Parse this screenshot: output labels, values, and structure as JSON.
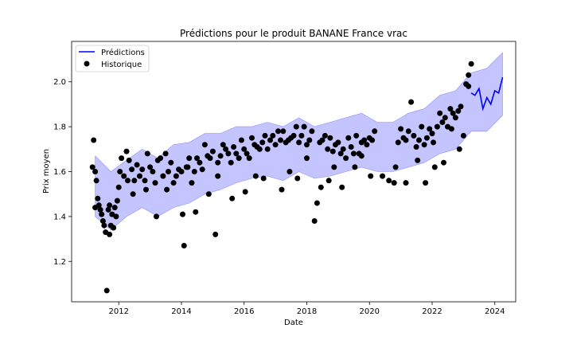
{
  "chart_data": {
    "type": "line",
    "title": "Prédictions pour le produit BANANE France vrac",
    "xlabel": "Date",
    "ylabel": "Prix moyen",
    "xlim": [
      "2010-07-01",
      "2024-09-01"
    ],
    "ylim": [
      1.02,
      2.18
    ],
    "x_ticks": [
      "2012",
      "2014",
      "2016",
      "2018",
      "2020",
      "2022",
      "2024"
    ],
    "y_ticks": [
      "1.2",
      "1.4",
      "1.6",
      "1.8",
      "2.0"
    ],
    "grid": false,
    "legend": {
      "placement": "top-left",
      "entries": [
        "Prédictions",
        "Historique"
      ]
    },
    "colors": {
      "prediction_line": "#0000ff",
      "interval_band": "#b0b0ff",
      "history_points": "#000000"
    },
    "series": [
      {
        "name": "Prédictions",
        "kind": "line",
        "x": [
          "2023-04-01",
          "2023-05-15",
          "2023-07-01",
          "2023-08-15",
          "2023-10-01",
          "2023-11-15",
          "2024-01-01",
          "2024-02-15",
          "2024-04-01"
        ],
        "y": [
          1.95,
          1.94,
          1.97,
          1.88,
          1.93,
          1.9,
          1.96,
          1.95,
          2.02
        ]
      },
      {
        "name": "Intervalle",
        "kind": "band",
        "x": [
          "2011-04-01",
          "2011-10-01",
          "2012-04-01",
          "2012-10-01",
          "2013-04-01",
          "2013-10-01",
          "2014-04-01",
          "2014-10-01",
          "2015-04-01",
          "2015-10-01",
          "2016-04-01",
          "2016-10-01",
          "2017-04-01",
          "2017-10-01",
          "2018-04-01",
          "2018-10-01",
          "2019-04-01",
          "2019-10-01",
          "2020-04-01",
          "2020-10-01",
          "2021-04-01",
          "2021-10-01",
          "2022-04-01",
          "2022-10-01",
          "2023-04-01",
          "2023-10-01",
          "2024-04-01"
        ],
        "lower": [
          1.4,
          1.34,
          1.4,
          1.44,
          1.4,
          1.44,
          1.46,
          1.5,
          1.52,
          1.55,
          1.57,
          1.58,
          1.56,
          1.6,
          1.57,
          1.58,
          1.6,
          1.62,
          1.6,
          1.6,
          1.62,
          1.64,
          1.68,
          1.7,
          1.78,
          1.78,
          1.85
        ],
        "upper": [
          1.67,
          1.6,
          1.65,
          1.7,
          1.66,
          1.72,
          1.73,
          1.77,
          1.77,
          1.8,
          1.8,
          1.82,
          1.8,
          1.84,
          1.8,
          1.82,
          1.84,
          1.86,
          1.82,
          1.82,
          1.86,
          1.88,
          1.94,
          1.96,
          2.04,
          2.06,
          2.13
        ]
      },
      {
        "name": "Historique",
        "kind": "scatter",
        "x": [
          "2011-03-01",
          "2011-03-15",
          "2011-04-01",
          "2011-04-15",
          "2011-05-01",
          "2011-05-15",
          "2011-06-01",
          "2011-06-15",
          "2011-07-01",
          "2011-07-15",
          "2011-08-01",
          "2011-08-15",
          "2011-09-01",
          "2011-09-15",
          "2011-10-01",
          "2011-10-15",
          "2011-11-01",
          "2011-11-15",
          "2011-12-01",
          "2011-12-15",
          "2012-01-01",
          "2012-01-15",
          "2012-02-01",
          "2012-03-01",
          "2012-04-01",
          "2012-05-01",
          "2012-06-01",
          "2012-07-01",
          "2012-08-01",
          "2012-09-01",
          "2012-10-01",
          "2012-11-01",
          "2012-12-01",
          "2013-01-01",
          "2013-02-01",
          "2013-03-01",
          "2013-04-01",
          "2013-05-01",
          "2013-06-01",
          "2013-07-01",
          "2013-08-01",
          "2013-09-01",
          "2013-10-01",
          "2013-11-01",
          "2013-12-01",
          "2014-01-01",
          "2014-02-01",
          "2014-03-01",
          "2014-04-01",
          "2014-05-01",
          "2014-06-01",
          "2014-07-01",
          "2014-08-01",
          "2014-09-01",
          "2014-10-01",
          "2014-11-01",
          "2014-12-01",
          "2015-01-01",
          "2015-02-01",
          "2015-03-01",
          "2015-04-01",
          "2015-05-01",
          "2015-06-01",
          "2015-07-01",
          "2015-08-01",
          "2015-09-01",
          "2015-10-01",
          "2015-11-01",
          "2015-12-01",
          "2016-01-01",
          "2016-02-01",
          "2016-03-01",
          "2016-04-01",
          "2016-05-01",
          "2016-06-01",
          "2016-07-01",
          "2016-08-01",
          "2016-09-01",
          "2016-10-01",
          "2016-11-01",
          "2016-12-01",
          "2017-01-01",
          "2017-02-01",
          "2017-03-01",
          "2017-04-01",
          "2017-05-01",
          "2017-06-01",
          "2017-07-01",
          "2017-08-01",
          "2017-09-01",
          "2017-10-01",
          "2017-11-01",
          "2017-12-01",
          "2018-01-01",
          "2018-02-01",
          "2018-03-01",
          "2018-04-01",
          "2018-05-01",
          "2018-06-01",
          "2018-07-01",
          "2018-08-01",
          "2018-09-01",
          "2018-10-01",
          "2018-11-01",
          "2018-12-01",
          "2019-01-01",
          "2019-02-01",
          "2019-03-01",
          "2019-04-01",
          "2019-05-01",
          "2019-06-01",
          "2019-07-01",
          "2019-08-01",
          "2019-09-01",
          "2019-10-01",
          "2019-11-01",
          "2019-12-01",
          "2020-01-01",
          "2020-02-01",
          "2020-03-01",
          "2020-10-15",
          "2020-11-01",
          "2020-12-01",
          "2021-01-01",
          "2021-02-01",
          "2021-03-01",
          "2021-04-01",
          "2021-05-01",
          "2021-06-01",
          "2021-07-01",
          "2021-08-01",
          "2021-09-01",
          "2021-10-01",
          "2021-11-01",
          "2021-12-01",
          "2022-01-01",
          "2022-02-01",
          "2022-03-01",
          "2022-04-01",
          "2022-05-01",
          "2022-06-01",
          "2022-07-01",
          "2022-08-01",
          "2022-09-01",
          "2022-10-01",
          "2022-11-01",
          "2022-12-01",
          "2023-01-01",
          "2023-02-01",
          "2023-03-01",
          "2023-04-01",
          "2011-04-01",
          "2011-09-15",
          "2012-04-15",
          "2013-03-15",
          "2014-01-15",
          "2014-03-15",
          "2015-03-01",
          "2016-01-15",
          "2017-03-15",
          "2017-09-15",
          "2018-01-01",
          "2018-06-15",
          "2019-02-15",
          "2019-10-01",
          "2020-06-01",
          "2021-03-01",
          "2021-07-15",
          "2022-01-15",
          "2022-08-15",
          "2023-03-01",
          "2012-06-15",
          "2013-07-15",
          "2014-06-15",
          "2015-08-15",
          "2016-08-15",
          "2017-06-15",
          "2018-09-15",
          "2019-07-15",
          "2020-01-15",
          "2021-10-15",
          "2022-11-15",
          "2012-11-15",
          "2014-11-15",
          "2016-05-15",
          "2018-11-15",
          "2020-08-15",
          "2022-05-15"
        ],
        "y": [
          1.62,
          1.74,
          1.6,
          1.56,
          1.48,
          1.45,
          1.43,
          1.41,
          1.38,
          1.36,
          1.33,
          1.07,
          1.43,
          1.45,
          1.36,
          1.41,
          1.35,
          1.44,
          1.4,
          1.47,
          1.53,
          1.6,
          1.66,
          1.58,
          1.69,
          1.65,
          1.61,
          1.56,
          1.63,
          1.58,
          1.61,
          1.56,
          1.68,
          1.62,
          1.6,
          1.55,
          1.65,
          1.66,
          1.58,
          1.68,
          1.6,
          1.64,
          1.55,
          1.58,
          1.61,
          1.6,
          1.27,
          1.62,
          1.66,
          1.55,
          1.6,
          1.66,
          1.64,
          1.61,
          1.72,
          1.67,
          1.66,
          1.69,
          1.32,
          1.64,
          1.67,
          1.72,
          1.7,
          1.68,
          1.64,
          1.71,
          1.68,
          1.66,
          1.74,
          1.7,
          1.68,
          1.66,
          1.75,
          1.72,
          1.71,
          1.7,
          1.73,
          1.76,
          1.7,
          1.74,
          1.76,
          1.72,
          1.78,
          1.74,
          1.78,
          1.73,
          1.74,
          1.75,
          1.76,
          1.8,
          1.73,
          1.76,
          1.8,
          1.72,
          1.74,
          1.78,
          1.38,
          1.46,
          1.73,
          1.74,
          1.76,
          1.7,
          1.75,
          1.69,
          1.72,
          1.73,
          1.68,
          1.7,
          1.66,
          1.75,
          1.71,
          1.68,
          1.76,
          1.68,
          1.73,
          1.74,
          1.72,
          1.75,
          1.74,
          1.78,
          1.55,
          1.62,
          1.73,
          1.79,
          1.75,
          1.74,
          1.78,
          1.91,
          1.76,
          1.71,
          1.74,
          1.8,
          1.72,
          1.75,
          1.79,
          1.77,
          1.62,
          1.8,
          1.86,
          1.82,
          1.84,
          1.8,
          1.88,
          1.86,
          1.84,
          1.87,
          1.89,
          1.76,
          1.99,
          2.03,
          2.08,
          1.44,
          1.32,
          1.56,
          1.4,
          1.41,
          1.62,
          1.58,
          1.51,
          1.52,
          1.57,
          1.66,
          1.53,
          1.53,
          1.67,
          1.58,
          1.55,
          1.65,
          1.73,
          1.79,
          1.98,
          1.5,
          1.52,
          1.42,
          1.48,
          1.57,
          1.6,
          1.56,
          1.62,
          1.58,
          1.55,
          1.7,
          1.52,
          1.5,
          1.58,
          1.62,
          1.56,
          1.64
        ]
      }
    ]
  }
}
